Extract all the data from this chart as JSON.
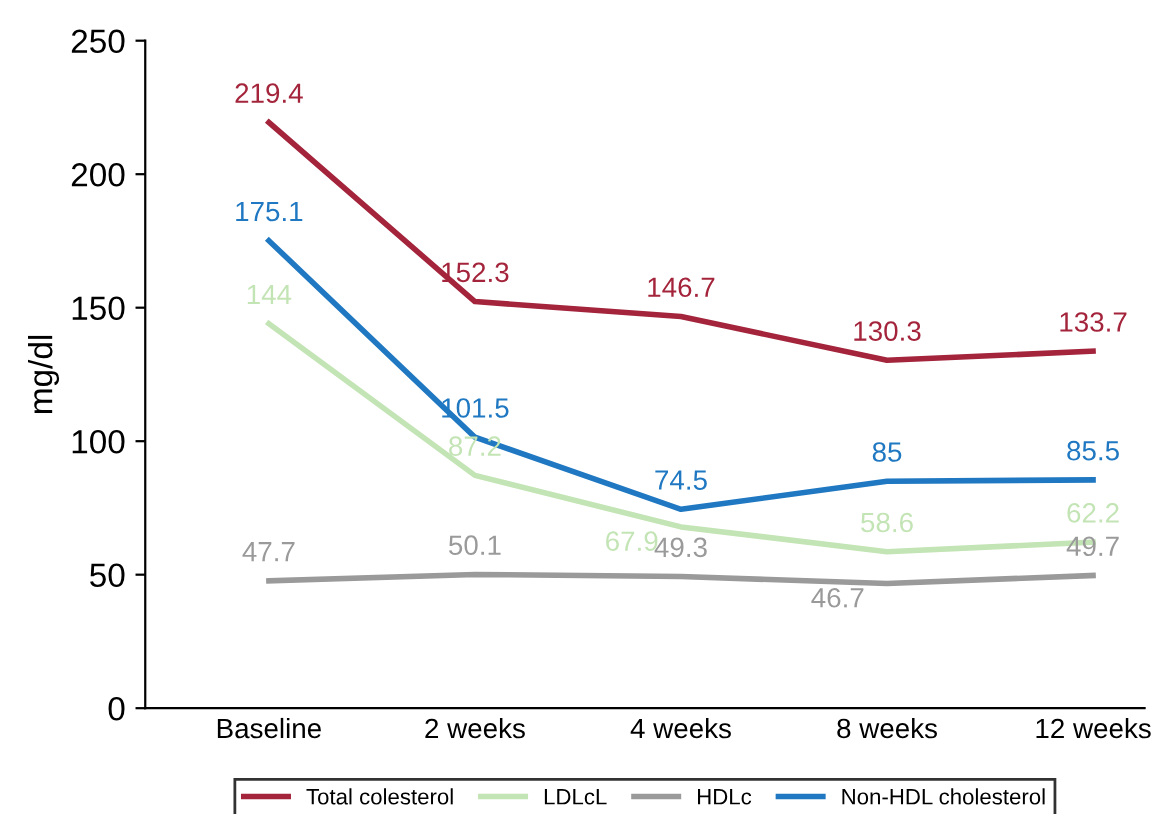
{
  "chart_data": {
    "type": "line",
    "ylabel": "mg/dl",
    "categories": [
      "Baseline",
      "2 weeks",
      "4 weeks",
      "8 weeks",
      "12 weeks"
    ],
    "series": [
      {
        "name": "Total colesterol",
        "color": "#a3243b",
        "values": [
          219.4,
          152.3,
          146.7,
          130.3,
          133.7
        ]
      },
      {
        "name": "LDLcL",
        "color": "#c3e4b4",
        "values": [
          144,
          87.2,
          67.9,
          58.6,
          62.2
        ]
      },
      {
        "name": "HDLc",
        "color": "#9a9a9a",
        "values": [
          47.7,
          50.1,
          49.3,
          46.7,
          49.7
        ]
      },
      {
        "name": "Non-HDL cholesterol",
        "color": "#1f78c1",
        "values": [
          175.1,
          101.5,
          74.5,
          85,
          85.5
        ]
      }
    ],
    "ylim": [
      0,
      250
    ],
    "yticks": [
      0,
      50,
      100,
      150,
      200,
      250
    ],
    "data_labels": true,
    "legend": "bottom",
    "grid": false,
    "marker": "none",
    "line_style": "solid"
  }
}
